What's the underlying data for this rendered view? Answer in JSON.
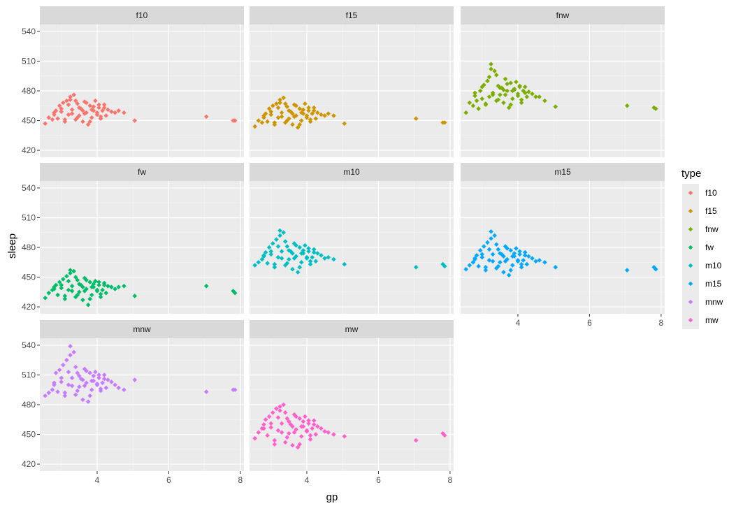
{
  "chart_data": {
    "type": "scatter",
    "title": "",
    "xlabel": "gp",
    "ylabel": "sleep",
    "xlim": [
      2.4,
      8.1
    ],
    "ylim": [
      413,
      547
    ],
    "x_ticks": [
      4,
      6,
      8
    ],
    "y_ticks": [
      420,
      450,
      480,
      510,
      540
    ],
    "grid": true,
    "facet_by": "type",
    "legend": {
      "title": "type",
      "position": "right"
    },
    "x": [
      2.55,
      2.65,
      2.75,
      2.8,
      2.85,
      2.9,
      2.95,
      3.0,
      3.05,
      3.1,
      3.15,
      3.2,
      3.25,
      3.3,
      3.35,
      3.4,
      3.45,
      3.5,
      3.55,
      3.6,
      3.65,
      3.7,
      3.75,
      3.8,
      3.85,
      3.9,
      3.95,
      4.0,
      4.05,
      4.1,
      4.15,
      4.2,
      4.25,
      4.3,
      4.4,
      4.5,
      4.6,
      4.75,
      5.05,
      7.05,
      7.8,
      7.85,
      2.8,
      3.0,
      3.1,
      3.2,
      3.3,
      3.4,
      3.5,
      3.6,
      3.7,
      3.8,
      3.9,
      4.0,
      4.1,
      4.2,
      3.25,
      3.45,
      3.65,
      3.85,
      4.05
    ],
    "series": [
      {
        "name": "f10",
        "color": "#F8766D",
        "y": [
          447,
          453,
          451,
          456,
          460,
          452,
          465,
          459,
          468,
          451,
          470,
          456,
          474,
          461,
          476,
          451,
          467,
          455,
          462,
          449,
          469,
          458,
          446,
          465,
          453,
          460,
          470,
          456,
          463,
          452,
          460,
          466,
          455,
          461,
          459,
          458,
          460,
          458,
          450,
          454,
          450,
          450,
          458,
          462,
          449,
          466,
          457,
          470,
          463,
          460,
          468,
          449,
          464,
          458,
          454,
          463,
          471,
          453,
          457,
          461,
          466
        ]
      },
      {
        "name": "f15",
        "color": "#CD9600",
        "y": [
          444,
          450,
          448,
          453,
          457,
          449,
          462,
          456,
          465,
          448,
          467,
          453,
          471,
          458,
          473,
          448,
          464,
          452,
          459,
          446,
          466,
          455,
          443,
          462,
          450,
          457,
          467,
          453,
          460,
          449,
          457,
          463,
          452,
          458,
          456,
          455,
          457,
          455,
          447,
          452,
          448,
          448,
          455,
          459,
          446,
          463,
          454,
          467,
          460,
          457,
          465,
          446,
          461,
          455,
          451,
          460,
          468,
          450,
          454,
          458,
          463
        ]
      },
      {
        "name": "fnw",
        "color": "#7CAE00",
        "y": [
          458,
          468,
          465,
          475,
          470,
          462,
          480,
          472,
          486,
          466,
          490,
          474,
          502,
          478,
          500,
          470,
          485,
          476,
          483,
          468,
          492,
          480,
          463,
          488,
          472,
          481,
          489,
          477,
          484,
          471,
          480,
          484,
          474,
          479,
          477,
          474,
          474,
          470,
          464,
          465,
          463,
          462,
          478,
          484,
          467,
          494,
          476,
          496,
          483,
          481,
          487,
          466,
          482,
          475,
          468,
          478,
          507,
          471,
          476,
          480,
          485
        ]
      },
      {
        "name": "fw",
        "color": "#00BE67",
        "y": [
          429,
          434,
          437,
          440,
          442,
          432,
          445,
          439,
          448,
          431,
          451,
          437,
          454,
          441,
          456,
          430,
          447,
          435,
          442,
          427,
          449,
          438,
          422,
          445,
          432,
          440,
          446,
          436,
          442,
          430,
          437,
          444,
          434,
          441,
          440,
          438,
          440,
          441,
          431,
          441,
          436,
          434,
          438,
          442,
          428,
          446,
          436,
          450,
          443,
          440,
          447,
          428,
          443,
          437,
          433,
          442,
          457,
          432,
          436,
          440,
          445
        ]
      },
      {
        "name": "m10",
        "color": "#00BFC4",
        "y": [
          462,
          465,
          468,
          472,
          475,
          464,
          480,
          473,
          484,
          463,
          488,
          470,
          492,
          476,
          495,
          462,
          481,
          468,
          476,
          458,
          484,
          471,
          455,
          480,
          465,
          474,
          482,
          469,
          476,
          463,
          470,
          478,
          466,
          474,
          472,
          469,
          470,
          468,
          463,
          460,
          463,
          461,
          471,
          476,
          460,
          481,
          469,
          486,
          477,
          474,
          482,
          460,
          477,
          470,
          466,
          475,
          497,
          464,
          469,
          474,
          479
        ]
      },
      {
        "name": "m15",
        "color": "#00A9FF",
        "y": [
          458,
          462,
          465,
          469,
          472,
          461,
          477,
          470,
          481,
          460,
          485,
          467,
          489,
          473,
          492,
          459,
          478,
          465,
          473,
          455,
          481,
          468,
          452,
          477,
          462,
          471,
          479,
          466,
          473,
          460,
          467,
          475,
          463,
          471,
          469,
          466,
          467,
          465,
          460,
          457,
          460,
          458,
          468,
          473,
          457,
          478,
          466,
          483,
          474,
          471,
          479,
          457,
          474,
          467,
          463,
          472,
          496,
          461,
          466,
          471,
          476
        ]
      },
      {
        "name": "mnw",
        "color": "#C77CFF",
        "y": [
          489,
          492,
          495,
          500,
          512,
          493,
          515,
          503,
          520,
          492,
          525,
          500,
          530,
          507,
          533,
          490,
          512,
          498,
          506,
          485,
          516,
          502,
          483,
          512,
          495,
          504,
          513,
          500,
          507,
          494,
          502,
          510,
          497,
          505,
          503,
          500,
          497,
          495,
          505,
          493,
          495,
          495,
          502,
          507,
          489,
          513,
          499,
          518,
          509,
          505,
          514,
          489,
          509,
          501,
          496,
          506,
          539,
          494,
          499,
          504,
          510
        ]
      },
      {
        "name": "mw",
        "color": "#FF61CC",
        "y": [
          446,
          452,
          456,
          460,
          465,
          449,
          468,
          457,
          472,
          444,
          476,
          454,
          478,
          461,
          480,
          442,
          466,
          451,
          460,
          439,
          470,
          455,
          437,
          466,
          448,
          458,
          468,
          453,
          461,
          445,
          456,
          464,
          450,
          458,
          456,
          453,
          452,
          450,
          448,
          444,
          451,
          449,
          456,
          461,
          440,
          467,
          452,
          472,
          463,
          458,
          468,
          440,
          463,
          454,
          449,
          460,
          474,
          447,
          452,
          458,
          464
        ]
      }
    ]
  }
}
